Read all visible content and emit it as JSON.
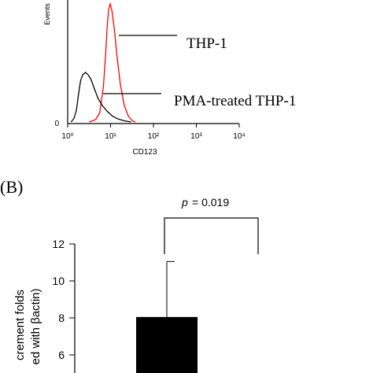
{
  "chart_data": [
    {
      "type": "line",
      "ylabel": "Events",
      "xlabel": "CD123",
      "x_scale": "log",
      "xlim": [
        1,
        10000
      ],
      "x_ticks": [
        "10⁰",
        "10¹",
        "10²",
        "10³",
        "10⁴"
      ],
      "y_ticks": [
        "0"
      ],
      "series": [
        {
          "name": "THP-1",
          "color": "#ff0000",
          "x": [
            3.2,
            4.5,
            5.6,
            6.8,
            7.6,
            8.3,
            9.0,
            9.8,
            10.8,
            12.3,
            14.2,
            16.9,
            20.9,
            26.0,
            32.0,
            38.0
          ],
          "y": [
            0.0,
            2.0,
            8.0,
            30.0,
            55.0,
            80.0,
            95.0,
            100.0,
            94.0,
            78.0,
            55.0,
            32.0,
            14.0,
            5.0,
            1.0,
            0.0
          ]
        },
        {
          "name": "PMA-treated THP-1",
          "color": "#000000",
          "x": [
            1.2,
            1.4,
            1.6,
            1.8,
            2.0,
            2.25,
            2.6,
            3.0,
            3.5,
            4.2,
            5.1,
            6.4,
            8.4,
            11.0,
            15.0,
            21.0,
            30.0
          ],
          "y": [
            0.0,
            3.0,
            10.0,
            24.0,
            35.0,
            40.0,
            42.0,
            40.0,
            36.0,
            28.0,
            20.0,
            14.0,
            9.0,
            5.0,
            2.5,
            1.0,
            0.0
          ]
        }
      ],
      "annotations": [
        "THP-1",
        "PMA-treated THP-1"
      ]
    },
    {
      "type": "bar",
      "panel_label": "(B)",
      "ylabel_lines": [
        "crement folds",
        "ed with βactin)"
      ],
      "ylim": [
        4,
        12
      ],
      "y_ticks": [
        "6",
        "8",
        "10",
        "12"
      ],
      "categories": [
        ""
      ],
      "values": [
        8.05
      ],
      "error_upper": [
        11.05
      ],
      "significance": {
        "label": "p",
        "value": "= 0.019"
      }
    }
  ]
}
